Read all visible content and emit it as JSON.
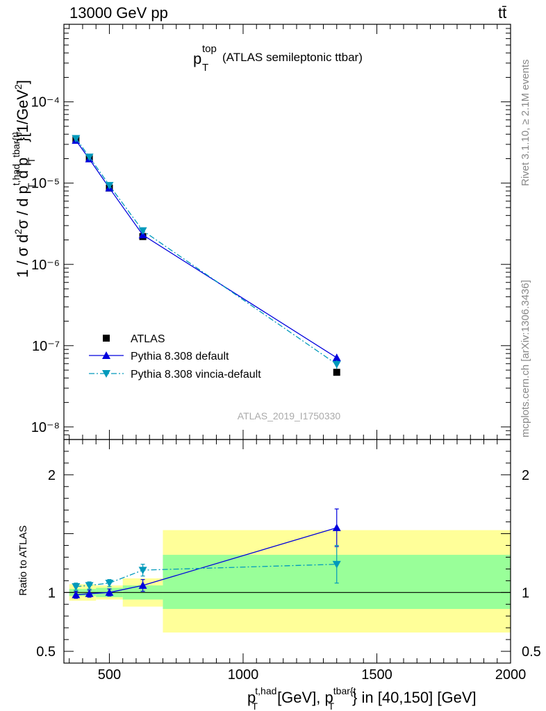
{
  "header": {
    "energy_label": "13000 GeV pp",
    "process_label": "tt̄"
  },
  "sidebar": {
    "rivet_label": "Rivet 3.1.10, ≥ 2.1M events",
    "mcplots_label": "mcplots.cern.ch [arXiv:1306.3436]"
  },
  "chart_data": [
    {
      "type": "line",
      "title": "p_T^top (ATLAS semileptonic ttbar)",
      "title_main": "p",
      "title_sub": "T",
      "title_sup": "top",
      "title_rest": "(ATLAS semileptonic ttbar)",
      "watermark": "ATLAS_2019_I1750330",
      "ylabel": "1 / σ d²σ / d p_T^t,had d p_T^tbar{t}}[1/GeV²]",
      "yscale": "log",
      "ylim": [
        7e-09,
        0.0009
      ],
      "xlim": [
        330,
        2000
      ],
      "y_tick_labels": [
        "10⁻⁸",
        "10⁻⁷",
        "10⁻⁶",
        "10⁻⁵",
        "10⁻⁴"
      ],
      "y_tick_values": [
        1e-08,
        1e-07,
        1e-06,
        1e-05,
        0.0001
      ],
      "legend_position": "bottom-left",
      "series": [
        {
          "name": "ATLAS",
          "color": "#000000",
          "marker": "square",
          "x": [
            375,
            425,
            500,
            625,
            1350
          ],
          "y": [
            3.4e-05,
            2e-05,
            8.7e-06,
            2.2e-06,
            4.7e-08
          ]
        },
        {
          "name": "Pythia 8.308 default",
          "color": "#0000dd",
          "marker": "triangle-up",
          "line": "solid",
          "x": [
            375,
            425,
            500,
            625,
            1350
          ],
          "y": [
            3.35e-05,
            1.98e-05,
            8.7e-06,
            2.3e-06,
            7.1e-08
          ],
          "yerr": [
            0,
            0,
            0,
            0,
            8e-09
          ]
        },
        {
          "name": "Pythia 8.308 vincia-default",
          "color": "#0099bb",
          "marker": "triangle-down",
          "line": "dashdot",
          "x": [
            375,
            425,
            500,
            625,
            1350
          ],
          "y": [
            3.55e-05,
            2.1e-05,
            9.4e-06,
            2.6e-06,
            5.9e-08
          ],
          "yerr": [
            0,
            0,
            0,
            0,
            7e-09
          ]
        }
      ]
    },
    {
      "type": "line",
      "ylabel": "Ratio to ATLAS",
      "xlabel": "p_T^t,had [GeV], p_T^tbar{t}} in [40,150] [GeV]",
      "xlim": [
        330,
        2000
      ],
      "ylim": [
        0.4,
        2.3
      ],
      "x_tick_labels": [
        "500",
        "1000",
        "1500",
        "2000"
      ],
      "x_tick_values": [
        500,
        1000,
        1500,
        2000
      ],
      "y_tick_labels": [
        "0.5",
        "1",
        "2"
      ],
      "y_tick_values": [
        0.5,
        1,
        2
      ],
      "uncertainty_bands": [
        {
          "x0": 350,
          "x1": 400,
          "stat_lo": 0.97,
          "stat_hi": 1.03,
          "tot_lo": 0.93,
          "tot_hi": 1.07
        },
        {
          "x0": 400,
          "x1": 450,
          "stat_lo": 0.97,
          "stat_hi": 1.03,
          "tot_lo": 0.93,
          "tot_hi": 1.07
        },
        {
          "x0": 450,
          "x1": 550,
          "stat_lo": 0.96,
          "stat_hi": 1.04,
          "tot_lo": 0.94,
          "tot_hi": 1.06
        },
        {
          "x0": 550,
          "x1": 700,
          "stat_lo": 0.94,
          "stat_hi": 1.06,
          "tot_lo": 0.88,
          "tot_hi": 1.12
        },
        {
          "x0": 700,
          "x1": 2000,
          "stat_lo": 0.86,
          "stat_hi": 1.32,
          "tot_lo": 0.66,
          "tot_hi": 1.53
        }
      ],
      "series": [
        {
          "name": "Pythia 8.308 default",
          "color": "#0000dd",
          "x": [
            375,
            425,
            500,
            625,
            1350
          ],
          "y": [
            0.98,
            0.99,
            1.0,
            1.06,
            1.55
          ],
          "yerr": [
            0.03,
            0.03,
            0.03,
            0.05,
            0.16
          ]
        },
        {
          "name": "Pythia 8.308 vincia-default",
          "color": "#0099bb",
          "x": [
            375,
            425,
            500,
            625,
            1350
          ],
          "y": [
            1.05,
            1.06,
            1.08,
            1.19,
            1.24
          ],
          "yerr": [
            0.03,
            0.03,
            0.03,
            0.05,
            0.16
          ]
        }
      ]
    }
  ]
}
